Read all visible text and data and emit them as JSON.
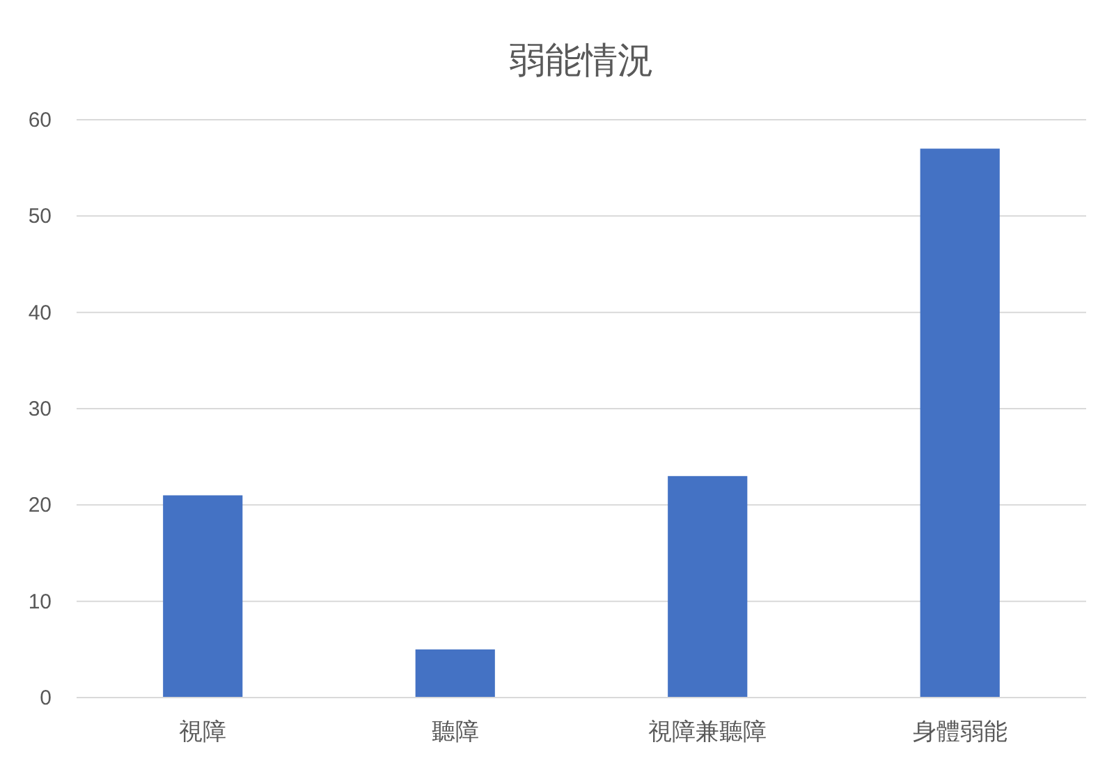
{
  "chart_data": {
    "type": "bar",
    "title": "弱能情況",
    "categories": [
      "視障",
      "聽障",
      "視障兼聽障",
      "身體弱能"
    ],
    "values": [
      21,
      5,
      23,
      57
    ],
    "color": "#4472c4",
    "ylim": [
      0,
      60
    ],
    "yticks": [
      0,
      10,
      20,
      30,
      40,
      50,
      60
    ],
    "grid": "y"
  }
}
